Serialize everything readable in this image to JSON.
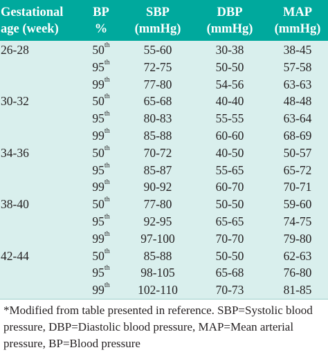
{
  "header": {
    "gestational_line1": "Gestational",
    "gestational_line2": "age (week)",
    "bp_line1": "BP",
    "bp_line2": "%",
    "sbp_line1": "SBP",
    "sbp_line2": "(mmHg)",
    "dbp_line1": "DBP",
    "dbp_line2": "(mmHg)",
    "map_line1": "MAP",
    "map_line2": "(mmHg)"
  },
  "colors": {
    "header_bg": "#00a99d",
    "body_bg": "#d9efed",
    "header_text": "#ffffff",
    "text": "#231f20"
  },
  "rows": [
    {
      "age": "26-28",
      "bp": "50",
      "bp_suffix": "th",
      "sbp": "55-60",
      "dbp": "30-38",
      "map": "38-45"
    },
    {
      "age": "",
      "bp": "95",
      "bp_suffix": "th",
      "sbp": "72-75",
      "dbp": "50-50",
      "map": "57-58"
    },
    {
      "age": "",
      "bp": "99",
      "bp_suffix": "th",
      "sbp": "77-80",
      "dbp": "54-56",
      "map": "63-63"
    },
    {
      "age": "30-32",
      "bp": "50",
      "bp_suffix": "th",
      "sbp": "65-68",
      "dbp": "40-40",
      "map": "48-48"
    },
    {
      "age": "",
      "bp": "95",
      "bp_suffix": "th",
      "sbp": "80-83",
      "dbp": "55-55",
      "map": "63-64"
    },
    {
      "age": "",
      "bp": "99",
      "bp_suffix": "th",
      "sbp": "85-88",
      "dbp": "60-60",
      "map": "68-69"
    },
    {
      "age": "34-36",
      "bp": "50",
      "bp_suffix": "th",
      "sbp": "70-72",
      "dbp": "40-50",
      "map": "50-57"
    },
    {
      "age": "",
      "bp": "95",
      "bp_suffix": "th",
      "sbp": "85-87",
      "dbp": "55-65",
      "map": "65-72"
    },
    {
      "age": "",
      "bp": "99",
      "bp_suffix": "th",
      "sbp": "90-92",
      "dbp": "60-70",
      "map": "70-71"
    },
    {
      "age": "38-40",
      "bp": "50",
      "bp_suffix": "th",
      "sbp": "77-80",
      "dbp": "50-50",
      "map": "59-60"
    },
    {
      "age": "",
      "bp": "95",
      "bp_suffix": "th",
      "sbp": "92-95",
      "dbp": "65-65",
      "map": "74-75"
    },
    {
      "age": "",
      "bp": "99",
      "bp_suffix": "th",
      "sbp": "97-100",
      "dbp": "70-70",
      "map": "79-80"
    },
    {
      "age": "42-44",
      "bp": "50",
      "bp_suffix": "th",
      "sbp": "85-88",
      "dbp": "50-50",
      "map": "62-63"
    },
    {
      "age": "",
      "bp": "95",
      "bp_suffix": "th",
      "sbp": "98-105",
      "dbp": "65-68",
      "map": "76-80"
    },
    {
      "age": "",
      "bp": "99",
      "bp_suffix": "th",
      "sbp": "102-110",
      "dbp": "70-73",
      "map": "81-85"
    }
  ],
  "footnote": "*Modified from table presented in reference. SBP=Systolic blood pressure, DBP=Diastolic blood pressure, MAP=Mean arterial pressure, BP=Blood pressure"
}
